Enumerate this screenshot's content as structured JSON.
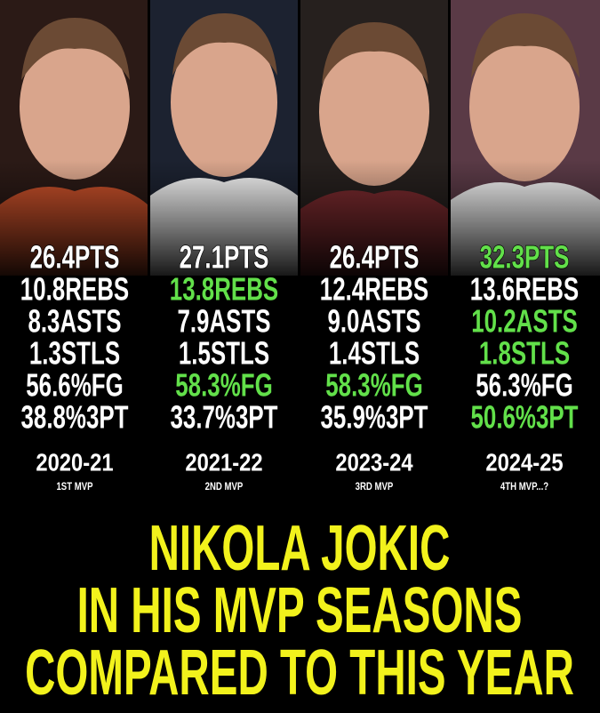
{
  "columns": [
    {
      "stats": [
        {
          "text": "26.4PTS",
          "highlight": false
        },
        {
          "text": "10.8REBS",
          "highlight": false
        },
        {
          "text": "8.3ASTS",
          "highlight": false
        },
        {
          "text": "1.3STLS",
          "highlight": false
        },
        {
          "text": "56.6%FG",
          "highlight": false
        },
        {
          "text": "38.8%3PT",
          "highlight": false
        }
      ],
      "season": "2020-21",
      "mvp": "1ST MVP"
    },
    {
      "stats": [
        {
          "text": "27.1PTS",
          "highlight": false
        },
        {
          "text": "13.8REBS",
          "highlight": true
        },
        {
          "text": "7.9ASTS",
          "highlight": false
        },
        {
          "text": "1.5STLS",
          "highlight": false
        },
        {
          "text": "58.3%FG",
          "highlight": true
        },
        {
          "text": "33.7%3PT",
          "highlight": false
        }
      ],
      "season": "2021-22",
      "mvp": "2ND MVP"
    },
    {
      "stats": [
        {
          "text": "26.4PTS",
          "highlight": false
        },
        {
          "text": "12.4REBS",
          "highlight": false
        },
        {
          "text": "9.0ASTS",
          "highlight": false
        },
        {
          "text": "1.4STLS",
          "highlight": false
        },
        {
          "text": "58.3%FG",
          "highlight": true
        },
        {
          "text": "35.9%3PT",
          "highlight": false
        }
      ],
      "season": "2023-24",
      "mvp": "3RD MVP"
    },
    {
      "stats": [
        {
          "text": "32.3PTS",
          "highlight": true
        },
        {
          "text": "13.6REBS",
          "highlight": false
        },
        {
          "text": "10.2ASTS",
          "highlight": true
        },
        {
          "text": "1.8STLS",
          "highlight": true
        },
        {
          "text": "56.3%FG",
          "highlight": false
        },
        {
          "text": "50.6%3PT",
          "highlight": true
        }
      ],
      "season": "2024-25",
      "mvp": "4TH MVP...?"
    }
  ],
  "title": {
    "lines": [
      "NIKOLA JOKIC",
      "IN HIS MVP SEASONS",
      "COMPARED TO THIS YEAR"
    ]
  }
}
